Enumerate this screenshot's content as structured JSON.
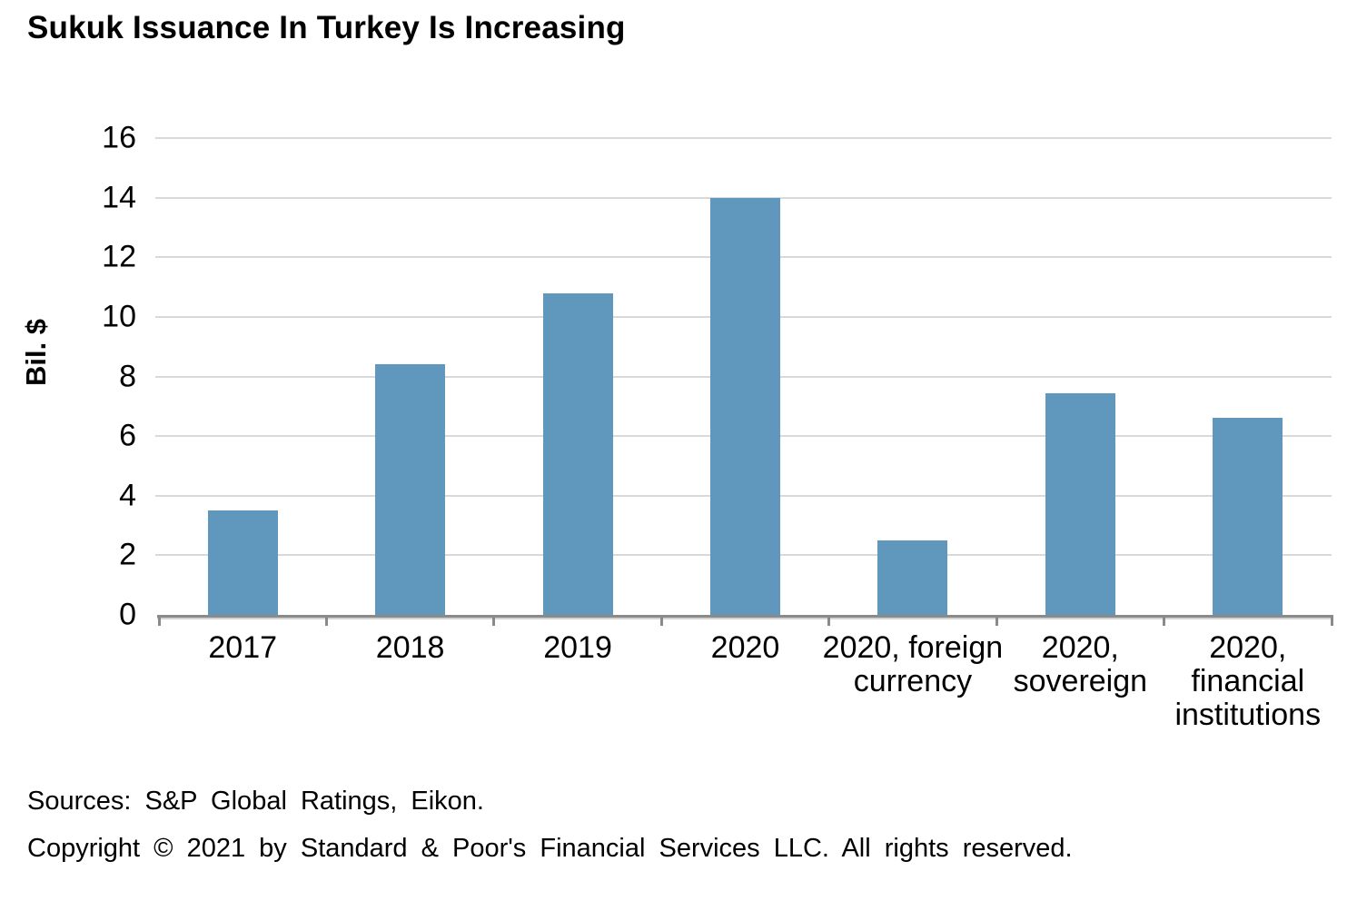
{
  "chart_data": {
    "type": "bar",
    "title": "Sukuk Issuance In Turkey Is Increasing",
    "categories": [
      "2017",
      "2018",
      "2019",
      "2020",
      "2020, foreign currency",
      "2020, sovereign",
      "2020, financial institutions"
    ],
    "category_lines": [
      [
        "2017"
      ],
      [
        "2018"
      ],
      [
        "2019"
      ],
      [
        "2020"
      ],
      [
        "2020, foreign",
        "currency"
      ],
      [
        "2020,",
        "sovereign"
      ],
      [
        "2020,",
        "financial",
        "institutions"
      ]
    ],
    "values": [
      3.5,
      8.4,
      10.8,
      14.0,
      2.5,
      7.45,
      6.6
    ],
    "xlabel": "",
    "ylabel": "Bil. $",
    "ylim": [
      0,
      16
    ],
    "yticks": [
      0,
      2,
      4,
      6,
      8,
      10,
      12,
      14,
      16
    ],
    "ytick_step": 2,
    "grid": true,
    "legend": "none",
    "bar_color": "#5f98bc"
  },
  "footer": {
    "sources": "Sources: S&P Global Ratings, Eikon.",
    "copyright": "Copyright © 2021 by Standard & Poor's Financial Services LLC. All rights reserved."
  },
  "colors": {
    "bar": "#5f98bc",
    "gridline": "#d9d9d9",
    "axis": "#8a8a8a",
    "text": "#000000",
    "background": "#ffffff"
  }
}
